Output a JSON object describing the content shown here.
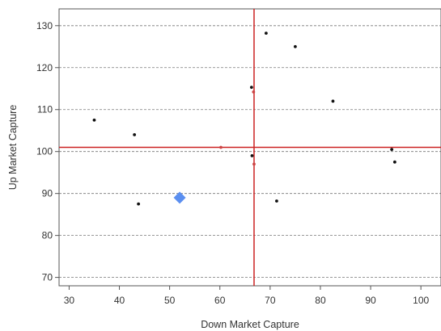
{
  "chart_data": {
    "type": "scatter",
    "xlabel": "Down Market Capture",
    "ylabel": "Up Market Capture",
    "xlim": [
      28,
      104
    ],
    "ylim": [
      68,
      134
    ],
    "x_ticks": [
      30,
      40,
      50,
      60,
      70,
      80,
      90,
      100
    ],
    "y_ticks": [
      70,
      80,
      90,
      100,
      110,
      120,
      130
    ],
    "grid": "horizontal-dashed",
    "reference_lines": {
      "x": 66.8,
      "y": 101,
      "color": "#cc2222"
    },
    "series": [
      {
        "marker": "dot",
        "color": "#111111",
        "points": [
          {
            "x": 35,
            "y": 107.5
          },
          {
            "x": 43,
            "y": 104
          },
          {
            "x": 43.8,
            "y": 87.5
          },
          {
            "x": 66.3,
            "y": 115.3
          },
          {
            "x": 66.4,
            "y": 99
          },
          {
            "x": 69.2,
            "y": 128.2
          },
          {
            "x": 71.3,
            "y": 88.2
          },
          {
            "x": 75,
            "y": 125
          },
          {
            "x": 82.5,
            "y": 112
          },
          {
            "x": 94.2,
            "y": 100.5
          },
          {
            "x": 94.8,
            "y": 97.5
          }
        ]
      },
      {
        "marker": "dot",
        "color": "#cc4444",
        "points": [
          {
            "x": 60.2,
            "y": 101
          },
          {
            "x": 66.7,
            "y": 114.2
          },
          {
            "x": 66.8,
            "y": 97
          }
        ]
      },
      {
        "marker": "diamond",
        "color": "#5b8ff0",
        "points": [
          {
            "x": 52,
            "y": 89
          }
        ]
      }
    ]
  }
}
